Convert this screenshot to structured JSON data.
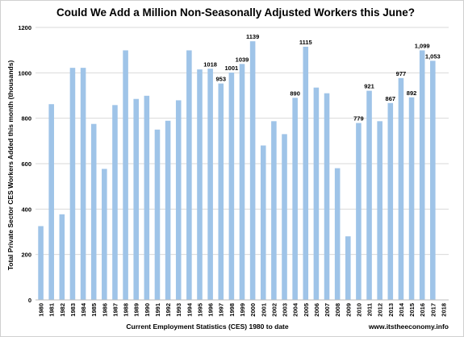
{
  "chart_data": {
    "type": "bar",
    "title": "Could We Add a Million Non-Seasonally Adjusted Workers this June?",
    "xlabel": "Current Employment Statistics (CES) 1980 to date",
    "ylabel": "Total Private Sector CES Workers Added this month (thousands)",
    "ylim": [
      0,
      1200
    ],
    "yticks": [
      0,
      200,
      400,
      600,
      800,
      1000,
      1200
    ],
    "grid": true,
    "legend": "none",
    "bar_color": "#9fc4e8",
    "categories": [
      "1980",
      "1981",
      "1982",
      "1983",
      "1984",
      "1985",
      "1986",
      "1987",
      "1988",
      "1989",
      "1990",
      "1991",
      "1992",
      "1993",
      "1994",
      "1995",
      "1996",
      "1997",
      "1998",
      "1999",
      "2000",
      "2001",
      "2002",
      "2003",
      "2004",
      "2005",
      "2006",
      "2007",
      "2008",
      "2009",
      "2010",
      "2011",
      "2012",
      "2013",
      "2014",
      "2015",
      "2016",
      "2017",
      "2018"
    ],
    "values": [
      325,
      862,
      377,
      1022,
      1022,
      775,
      577,
      858,
      1099,
      885,
      899,
      750,
      789,
      879,
      1099,
      1015,
      1018,
      953,
      1001,
      1039,
      1139,
      680,
      787,
      730,
      890,
      1115,
      935,
      910,
      580,
      280,
      779,
      921,
      787,
      867,
      977,
      892,
      1099,
      1053,
      null
    ],
    "data_labels": [
      null,
      null,
      null,
      null,
      null,
      null,
      null,
      null,
      null,
      null,
      null,
      null,
      null,
      null,
      null,
      null,
      "1018",
      "953",
      "1001",
      "1039",
      "1139",
      null,
      null,
      null,
      "890",
      "1115",
      null,
      null,
      null,
      null,
      "779",
      "921",
      null,
      "867",
      "977",
      "892",
      "1,099",
      "1,053",
      null
    ]
  },
  "footer": {
    "source": "www.itstheeconomy.info"
  }
}
